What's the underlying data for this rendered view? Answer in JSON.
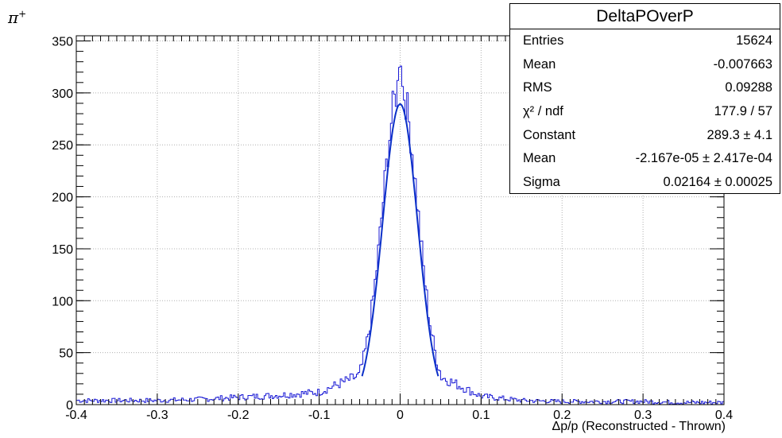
{
  "particle_label": "π",
  "particle_charge": "+",
  "stats": {
    "title": "DeltaPOverP",
    "rows": [
      {
        "name": "Entries",
        "value": "15624"
      },
      {
        "name": "Mean",
        "value": "-0.007663"
      },
      {
        "name": "RMS",
        "value": "0.09288"
      },
      {
        "name": "χ² / ndf",
        "value": "177.9 / 57"
      },
      {
        "name": "Constant",
        "value": "289.3 ± 4.1"
      },
      {
        "name": "Mean",
        "value": "-2.167e-05 ± 2.417e-04"
      },
      {
        "name": "Sigma",
        "value": "0.02164 ± 0.00025"
      }
    ]
  },
  "chart_data": {
    "type": "histogram",
    "xlabel": "Δp/p (Reconstructed - Thrown)",
    "ylabel": "",
    "xlim": [
      -0.4,
      0.4
    ],
    "ylim": [
      0,
      355
    ],
    "xticks": [
      -0.4,
      -0.3,
      -0.2,
      -0.1,
      0,
      0.1,
      0.2,
      0.3,
      0.4
    ],
    "xtick_labels": [
      "-0.4",
      "-0.3",
      "-0.2",
      "-0.1",
      "0",
      "0.1",
      "0.2",
      "0.3",
      "0.4"
    ],
    "yticks": [
      0,
      50,
      100,
      150,
      200,
      250,
      300,
      350
    ],
    "ytick_labels": [
      "0",
      "50",
      "100",
      "150",
      "200",
      "250",
      "300",
      "350"
    ],
    "grid": true,
    "histogram": {
      "bins": 400,
      "x_start": -0.4,
      "bin_width": 0.002,
      "tail_counts_by_0p05": [
        {
          "x": -0.4,
          "y": 4
        },
        {
          "x": -0.35,
          "y": 4
        },
        {
          "x": -0.3,
          "y": 4
        },
        {
          "x": -0.25,
          "y": 5
        },
        {
          "x": -0.2,
          "y": 7
        },
        {
          "x": -0.15,
          "y": 9
        },
        {
          "x": -0.1,
          "y": 12
        },
        {
          "x": -0.05,
          "y": 28
        },
        {
          "x": 0.05,
          "y": 27
        },
        {
          "x": 0.1,
          "y": 8
        },
        {
          "x": 0.15,
          "y": 4
        },
        {
          "x": 0.2,
          "y": 3
        },
        {
          "x": 0.25,
          "y": 3
        },
        {
          "x": 0.3,
          "y": 3
        },
        {
          "x": 0.35,
          "y": 2
        },
        {
          "x": 0.4,
          "y": 2
        }
      ],
      "peak_count": 338,
      "peak_x": 0.0
    },
    "fit": {
      "function": "gaus",
      "constant": 289.3,
      "mean": -2.167e-05,
      "sigma": 0.02164,
      "x_range": [
        -0.047,
        0.047
      ]
    },
    "colors": {
      "histogram": "#1a1ad6",
      "fit": "#0a2fc8",
      "grid": "#b0b0b0"
    }
  }
}
